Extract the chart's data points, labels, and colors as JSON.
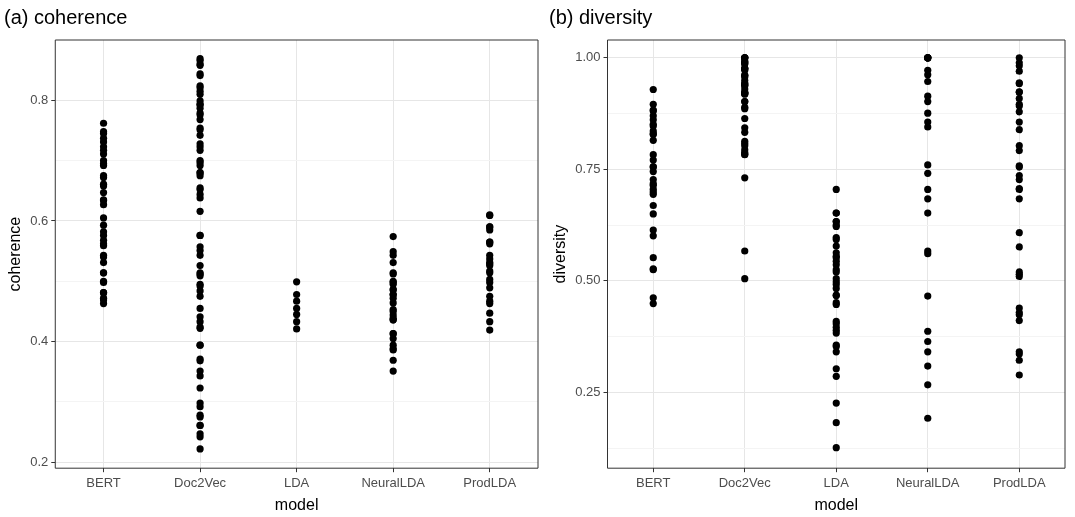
{
  "chart_data": [
    {
      "type": "scatter",
      "title": "(a) coherence",
      "xlabel": "model",
      "ylabel": "coherence",
      "ylim": [
        0.19,
        0.9
      ],
      "categories": [
        "BERT",
        "Doc2Vec",
        "LDA",
        "NeuralLDA",
        "ProdLDA"
      ],
      "yticks": [
        0.2,
        {
          "value": 0.3,
          "label": null
        },
        0.4,
        {
          "value": 0.5,
          "label": null
        },
        0.6,
        {
          "value": 0.7,
          "label": null
        },
        0.8
      ],
      "grid": true,
      "legend": false,
      "marker": "circle",
      "series": [
        {
          "color": "#000000",
          "x": [
            "BERT",
            "BERT",
            "BERT",
            "BERT",
            "BERT",
            "BERT",
            "BERT",
            "BERT",
            "BERT",
            "BERT",
            "BERT",
            "BERT",
            "BERT",
            "BERT",
            "BERT",
            "BERT",
            "BERT",
            "BERT",
            "BERT",
            "BERT",
            "BERT",
            "BERT",
            "BERT",
            "BERT",
            "BERT",
            "BERT",
            "BERT",
            "BERT",
            "BERT",
            "BERT",
            "BERT",
            "BERT",
            "BERT",
            "BERT",
            "BERT",
            "BERT",
            "BERT",
            "BERT",
            "Doc2Vec",
            "Doc2Vec",
            "Doc2Vec",
            "Doc2Vec",
            "Doc2Vec",
            "Doc2Vec",
            "Doc2Vec",
            "Doc2Vec",
            "Doc2Vec",
            "Doc2Vec",
            "Doc2Vec",
            "Doc2Vec",
            "Doc2Vec",
            "Doc2Vec",
            "Doc2Vec",
            "Doc2Vec",
            "Doc2Vec",
            "Doc2Vec",
            "Doc2Vec",
            "Doc2Vec",
            "Doc2Vec",
            "Doc2Vec",
            "Doc2Vec",
            "Doc2Vec",
            "Doc2Vec",
            "Doc2Vec",
            "Doc2Vec",
            "Doc2Vec",
            "Doc2Vec",
            "Doc2Vec",
            "Doc2Vec",
            "Doc2Vec",
            "Doc2Vec",
            "Doc2Vec",
            "Doc2Vec",
            "Doc2Vec",
            "Doc2Vec",
            "Doc2Vec",
            "Doc2Vec",
            "Doc2Vec",
            "Doc2Vec",
            "Doc2Vec",
            "Doc2Vec",
            "Doc2Vec",
            "Doc2Vec",
            "Doc2Vec",
            "Doc2Vec",
            "Doc2Vec",
            "Doc2Vec",
            "Doc2Vec",
            "Doc2Vec",
            "Doc2Vec",
            "Doc2Vec",
            "Doc2Vec",
            "Doc2Vec",
            "Doc2Vec",
            "Doc2Vec",
            "Doc2Vec",
            "Doc2Vec",
            "Doc2Vec",
            "Doc2Vec",
            "Doc2Vec",
            "Doc2Vec",
            "Doc2Vec",
            "Doc2Vec",
            "Doc2Vec",
            "Doc2Vec",
            "Doc2Vec",
            "LDA",
            "LDA",
            "LDA",
            "LDA",
            "LDA",
            "LDA",
            "LDA",
            "NeuralLDA",
            "NeuralLDA",
            "NeuralLDA",
            "NeuralLDA",
            "NeuralLDA",
            "NeuralLDA",
            "NeuralLDA",
            "NeuralLDA",
            "NeuralLDA",
            "NeuralLDA",
            "NeuralLDA",
            "NeuralLDA",
            "NeuralLDA",
            "NeuralLDA",
            "NeuralLDA",
            "NeuralLDA",
            "NeuralLDA",
            "NeuralLDA",
            "NeuralLDA",
            "NeuralLDA",
            "NeuralLDA",
            "NeuralLDA",
            "NeuralLDA",
            "NeuralLDA",
            "NeuralLDA",
            "NeuralLDA",
            "NeuralLDA",
            "NeuralLDA",
            "NeuralLDA",
            "ProdLDA",
            "ProdLDA",
            "ProdLDA",
            "ProdLDA",
            "ProdLDA",
            "ProdLDA",
            "ProdLDA",
            "ProdLDA",
            "ProdLDA",
            "ProdLDA",
            "ProdLDA",
            "ProdLDA",
            "ProdLDA",
            "ProdLDA",
            "ProdLDA",
            "ProdLDA",
            "ProdLDA",
            "ProdLDA",
            "ProdLDA",
            "ProdLDA",
            "ProdLDA",
            "ProdLDA",
            "ProdLDA",
            "ProdLDA"
          ],
          "values": [
            0.762,
            0.748,
            0.737,
            0.745,
            0.731,
            0.723,
            0.711,
            0.717,
            0.695,
            0.692,
            0.7,
            0.675,
            0.672,
            0.658,
            0.661,
            0.647,
            0.635,
            0.627,
            0.634,
            0.605,
            0.593,
            0.582,
            0.568,
            0.562,
            0.54,
            0.543,
            0.531,
            0.514,
            0.514,
            0.498,
            0.5,
            0.472,
            0.463,
            0.481,
            0.481,
            0.469,
            0.576,
            0.559,
            0.869,
            0.866,
            0.86,
            0.858,
            0.844,
            0.841,
            0.824,
            0.821,
            0.815,
            0.81,
            0.799,
            0.793,
            0.793,
            0.787,
            0.779,
            0.776,
            0.768,
            0.751,
            0.754,
            0.742,
            0.723,
            0.728,
            0.717,
            0.697,
            0.7,
            0.692,
            0.68,
            0.68,
            0.675,
            0.652,
            0.655,
            0.644,
            0.638,
            0.616,
            0.576,
            0.576,
            0.551,
            0.557,
            0.543,
            0.514,
            0.509,
            0.512,
            0.495,
            0.484,
            0.475,
            0.455,
            0.433,
            0.422,
            0.424,
            0.441,
            0.394,
            0.394,
            0.368,
            0.371,
            0.351,
            0.343,
            0.323,
            0.298,
            0.292,
            0.275,
            0.261,
            0.261,
            0.247,
            0.242,
            0.222,
            0.278,
            0.526,
            0.492,
            0.499,
            0.478,
            0.467,
            0.455,
            0.445,
            0.433,
            0.421,
            0.574,
            0.549,
            0.543,
            0.531,
            0.514,
            0.498,
            0.495,
            0.512,
            0.5,
            0.478,
            0.478,
            0.464,
            0.472,
            0.453,
            0.444,
            0.45,
            0.439,
            0.436,
            0.413,
            0.413,
            0.405,
            0.394,
            0.386,
            0.388,
            0.369,
            0.351,
            0.486,
            0.486,
            0.436,
            0.609,
            0.61,
            0.59,
            0.59,
            0.585,
            0.565,
            0.565,
            0.562,
            0.543,
            0.531,
            0.529,
            0.537,
            0.526,
            0.517,
            0.514,
            0.503,
            0.498,
            0.489,
            0.467,
            0.475,
            0.463,
            0.447,
            0.433,
            0.419
          ]
        }
      ]
    },
    {
      "type": "scatter",
      "title": "(b) diversity",
      "xlabel": "model",
      "ylabel": "diversity",
      "ylim": [
        0.08,
        1.04
      ],
      "categories": [
        "BERT",
        "Doc2Vec",
        "LDA",
        "NeuralLDA",
        "ProdLDA"
      ],
      "yticks": [
        {
          "value": 0.125,
          "label": null
        },
        {
          "value": 0.25,
          "label": "0.25"
        },
        {
          "value": 0.375,
          "label": null
        },
        {
          "value": 0.5,
          "label": "0.50"
        },
        {
          "value": 0.625,
          "label": null
        },
        {
          "value": 0.75,
          "label": "0.75"
        },
        {
          "value": 0.875,
          "label": null
        },
        {
          "value": 1,
          "label": "1.00"
        }
      ],
      "grid": true,
      "legend": false,
      "marker": "circle",
      "series": [
        {
          "color": "#000000",
          "x": [
            "BERT",
            "BERT",
            "BERT",
            "BERT",
            "BERT",
            "BERT",
            "BERT",
            "BERT",
            "BERT",
            "BERT",
            "BERT",
            "BERT",
            "BERT",
            "BERT",
            "BERT",
            "BERT",
            "BERT",
            "BERT",
            "BERT",
            "BERT",
            "BERT",
            "BERT",
            "BERT",
            "BERT",
            "BERT",
            "BERT",
            "BERT",
            "BERT",
            "BERT",
            "BERT",
            "BERT",
            "BERT",
            "Doc2Vec",
            "Doc2Vec",
            "Doc2Vec",
            "Doc2Vec",
            "Doc2Vec",
            "Doc2Vec",
            "Doc2Vec",
            "Doc2Vec",
            "Doc2Vec",
            "Doc2Vec",
            "Doc2Vec",
            "Doc2Vec",
            "Doc2Vec",
            "Doc2Vec",
            "Doc2Vec",
            "Doc2Vec",
            "Doc2Vec",
            "Doc2Vec",
            "Doc2Vec",
            "Doc2Vec",
            "Doc2Vec",
            "Doc2Vec",
            "Doc2Vec",
            "Doc2Vec",
            "Doc2Vec",
            "Doc2Vec",
            "Doc2Vec",
            "Doc2Vec",
            "Doc2Vec",
            "Doc2Vec",
            "Doc2Vec",
            "Doc2Vec",
            "Doc2Vec",
            "Doc2Vec",
            "Doc2Vec",
            "Doc2Vec",
            "Doc2Vec",
            "Doc2Vec",
            "Doc2Vec",
            "Doc2Vec",
            "Doc2Vec",
            "Doc2Vec",
            "Doc2Vec",
            "LDA",
            "LDA",
            "LDA",
            "LDA",
            "LDA",
            "LDA",
            "LDA",
            "LDA",
            "LDA",
            "LDA",
            "LDA",
            "LDA",
            "LDA",
            "LDA",
            "LDA",
            "LDA",
            "LDA",
            "LDA",
            "LDA",
            "LDA",
            "LDA",
            "LDA",
            "LDA",
            "LDA",
            "LDA",
            "LDA",
            "LDA",
            "LDA",
            "LDA",
            "LDA",
            "LDA",
            "LDA",
            "LDA",
            "LDA",
            "LDA",
            "LDA",
            "LDA",
            "LDA",
            "NeuralLDA",
            "NeuralLDA",
            "NeuralLDA",
            "NeuralLDA",
            "NeuralLDA",
            "NeuralLDA",
            "NeuralLDA",
            "NeuralLDA",
            "NeuralLDA",
            "NeuralLDA",
            "NeuralLDA",
            "NeuralLDA",
            "NeuralLDA",
            "NeuralLDA",
            "NeuralLDA",
            "NeuralLDA",
            "NeuralLDA",
            "NeuralLDA",
            "NeuralLDA",
            "NeuralLDA",
            "NeuralLDA",
            "NeuralLDA",
            "NeuralLDA",
            "NeuralLDA",
            "NeuralLDA",
            "NeuralLDA",
            "NeuralLDA",
            "ProdLDA",
            "ProdLDA",
            "ProdLDA",
            "ProdLDA",
            "ProdLDA",
            "ProdLDA",
            "ProdLDA",
            "ProdLDA",
            "ProdLDA",
            "ProdLDA",
            "ProdLDA",
            "ProdLDA",
            "ProdLDA",
            "ProdLDA",
            "ProdLDA",
            "ProdLDA",
            "ProdLDA",
            "ProdLDA",
            "ProdLDA",
            "ProdLDA",
            "ProdLDA",
            "ProdLDA",
            "ProdLDA",
            "ProdLDA",
            "ProdLDA",
            "ProdLDA",
            "ProdLDA",
            "ProdLDA",
            "ProdLDA",
            "ProdLDA",
            "ProdLDA",
            "ProdLDA",
            "ProdLDA",
            "ProdLDA",
            "ProdLDA",
            "ProdLDA"
          ],
          "values": [
            0.929,
            0.896,
            0.861,
            0.87,
            0.883,
            0.881,
            0.851,
            0.847,
            0.83,
            0.815,
            0.828,
            0.836,
            0.783,
            0.771,
            0.756,
            0.755,
            0.745,
            0.727,
            0.714,
            0.699,
            0.705,
            0.718,
            0.694,
            0.669,
            0.65,
            0.601,
            0.614,
            0.552,
            0.525,
            0.527,
            0.462,
            0.449,
            1.0,
            1.0,
            1.0,
            1.0,
            0.987,
            0.991,
            0.987,
            0.992,
            0.976,
            0.976,
            0.972,
            0.976,
            0.961,
            0.961,
            0.957,
            0.949,
            0.942,
            0.938,
            0.942,
            0.938,
            0.921,
            0.919,
            0.923,
            0.921,
            0.919,
            0.93,
            0.902,
            0.902,
            0.889,
            0.886,
            0.864,
            0.843,
            0.833,
            0.813,
            0.808,
            0.803,
            0.788,
            0.783,
            0.794,
            0.784,
            0.731,
            0.567,
            0.505,
            0.705,
            0.652,
            0.652,
            0.633,
            0.625,
            0.633,
            0.622,
            0.597,
            0.593,
            0.578,
            0.563,
            0.555,
            0.552,
            0.544,
            0.536,
            0.52,
            0.525,
            0.498,
            0.505,
            0.483,
            0.492,
            0.451,
            0.468,
            0.467,
            0.447,
            0.389,
            0.409,
            0.404,
            0.383,
            0.356,
            0.353,
            0.341,
            0.303,
            0.286,
            0.226,
            0.182,
            0.126,
            0.396,
            1.0,
            1.0,
            1.0,
            1.0,
            1.0,
            0.972,
            0.962,
            0.947,
            0.914,
            0.902,
            0.876,
            0.856,
            0.845,
            0.76,
            0.741,
            0.705,
            0.684,
            0.652,
            0.567,
            0.561,
            0.466,
            0.387,
            0.364,
            0.341,
            0.309,
            0.267,
            0.192,
            1.0,
            0.989,
            0.982,
            0.97,
            0.944,
            0.942,
            0.924,
            0.923,
            0.909,
            0.896,
            0.892,
            0.879,
            0.856,
            0.839,
            0.803,
            0.792,
            0.758,
            0.755,
            0.736,
            0.727,
            0.707,
            0.705,
            0.684,
            0.608,
            0.576,
            0.52,
            0.51,
            0.515,
            0.439,
            0.429,
            0.411,
            0.424,
            0.336,
            0.341,
            0.322,
            0.289
          ]
        }
      ]
    }
  ]
}
